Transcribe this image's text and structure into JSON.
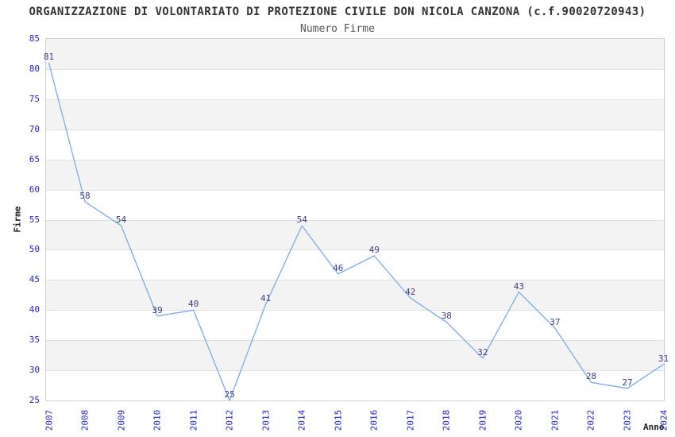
{
  "chart_data": {
    "type": "line",
    "title": "ORGANIZZAZIONE DI VOLONTARIATO DI PROTEZIONE CIVILE DON NICOLA CANZONA (c.f.90020720943)",
    "subtitle": "Numero Firme",
    "xlabel": "Anno",
    "ylabel": "Firme",
    "categories": [
      "2007",
      "2008",
      "2009",
      "2010",
      "2011",
      "2012",
      "2013",
      "2014",
      "2015",
      "2016",
      "2017",
      "2018",
      "2019",
      "2020",
      "2021",
      "2022",
      "2023",
      "2024"
    ],
    "values": [
      81,
      58,
      54,
      39,
      40,
      25,
      41,
      54,
      46,
      49,
      42,
      38,
      32,
      43,
      37,
      28,
      27,
      31
    ],
    "ylim": [
      25,
      85
    ],
    "ytick_step": 5,
    "grid": "horizontal-bands-alternating",
    "legend": "none",
    "colors": {
      "line": "#7aabe8",
      "point_label": "#3d3d80",
      "tick_label": "#2323cf",
      "band": "#f3f3f3",
      "grid_line": "#e0e0e0",
      "plot_border": "#cfcfcf",
      "title": "#333333",
      "subtitle": "#555555",
      "axis_title": "#222222"
    }
  }
}
